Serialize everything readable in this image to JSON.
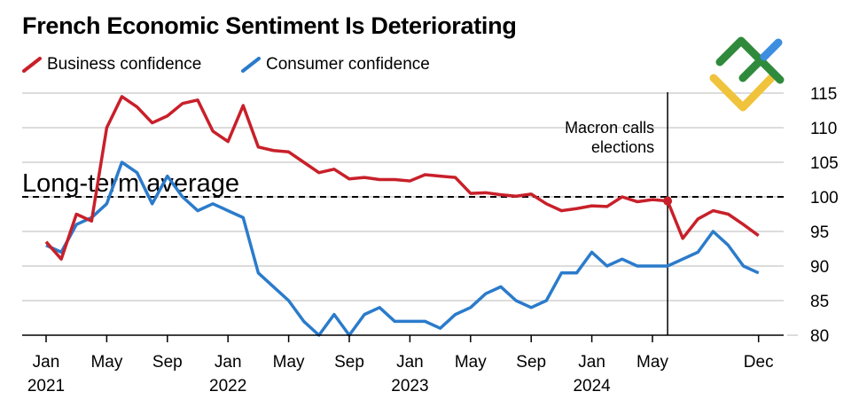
{
  "chart_data": {
    "type": "line",
    "title": "French Economic Sentiment Is Deteriorating",
    "xlabel": "",
    "ylabel": "",
    "ylim": [
      80,
      115
    ],
    "yticks": [
      "115",
      "110",
      "105",
      "100",
      "95",
      "90",
      "85",
      "80"
    ],
    "ytick_values": [
      115,
      110,
      105,
      100,
      95,
      90,
      85,
      80
    ],
    "grid": true,
    "legend_placement": "top-left",
    "xticks": [
      {
        "month_index": 0,
        "label": "Jan",
        "year": "2021"
      },
      {
        "month_index": 4,
        "label": "May",
        "year": ""
      },
      {
        "month_index": 8,
        "label": "Sep",
        "year": ""
      },
      {
        "month_index": 12,
        "label": "Jan",
        "year": "2022"
      },
      {
        "month_index": 16,
        "label": "May",
        "year": ""
      },
      {
        "month_index": 20,
        "label": "Sep",
        "year": ""
      },
      {
        "month_index": 24,
        "label": "Jan",
        "year": "2023"
      },
      {
        "month_index": 28,
        "label": "May",
        "year": ""
      },
      {
        "month_index": 32,
        "label": "Sep",
        "year": ""
      },
      {
        "month_index": 36,
        "label": "Jan",
        "year": "2024"
      },
      {
        "month_index": 40,
        "label": "May",
        "year": ""
      },
      {
        "month_index": 47,
        "label": "Dec",
        "year": ""
      }
    ],
    "series": [
      {
        "name": "Business confidence",
        "color": "#c8202a",
        "values": [
          93.5,
          91,
          97.5,
          96.5,
          110,
          114.5,
          113,
          110.7,
          111.7,
          113.5,
          114,
          109.5,
          108,
          113.2,
          107.2,
          106.7,
          106.5,
          105,
          103.5,
          104,
          102.6,
          102.8,
          102.5,
          102.5,
          102.3,
          103.2,
          103,
          102.8,
          100.5,
          100.6,
          100.3,
          100.1,
          100.4,
          99,
          98,
          98.3,
          98.7,
          98.6,
          100,
          99.3,
          99.6,
          99.4,
          94,
          96.8,
          98,
          97.5,
          96,
          94.4
        ]
      },
      {
        "name": "Consumer confidence",
        "color": "#2b7bcb",
        "values": [
          93,
          92,
          96,
          97,
          99,
          105,
          103.5,
          99,
          103,
          100,
          98,
          99,
          98,
          97,
          89,
          87,
          85,
          82,
          80,
          83,
          80,
          83,
          84,
          82,
          82,
          82,
          81,
          83,
          84,
          86,
          87,
          85,
          84,
          85,
          89,
          89,
          92,
          90,
          91,
          90,
          90,
          90,
          91,
          92,
          95,
          93,
          90,
          89
        ]
      }
    ],
    "reference_line": {
      "value": 100,
      "label": "Long-term average"
    },
    "annotation": {
      "month_index": 41,
      "line1": "Macron calls",
      "line2": "elections"
    }
  }
}
